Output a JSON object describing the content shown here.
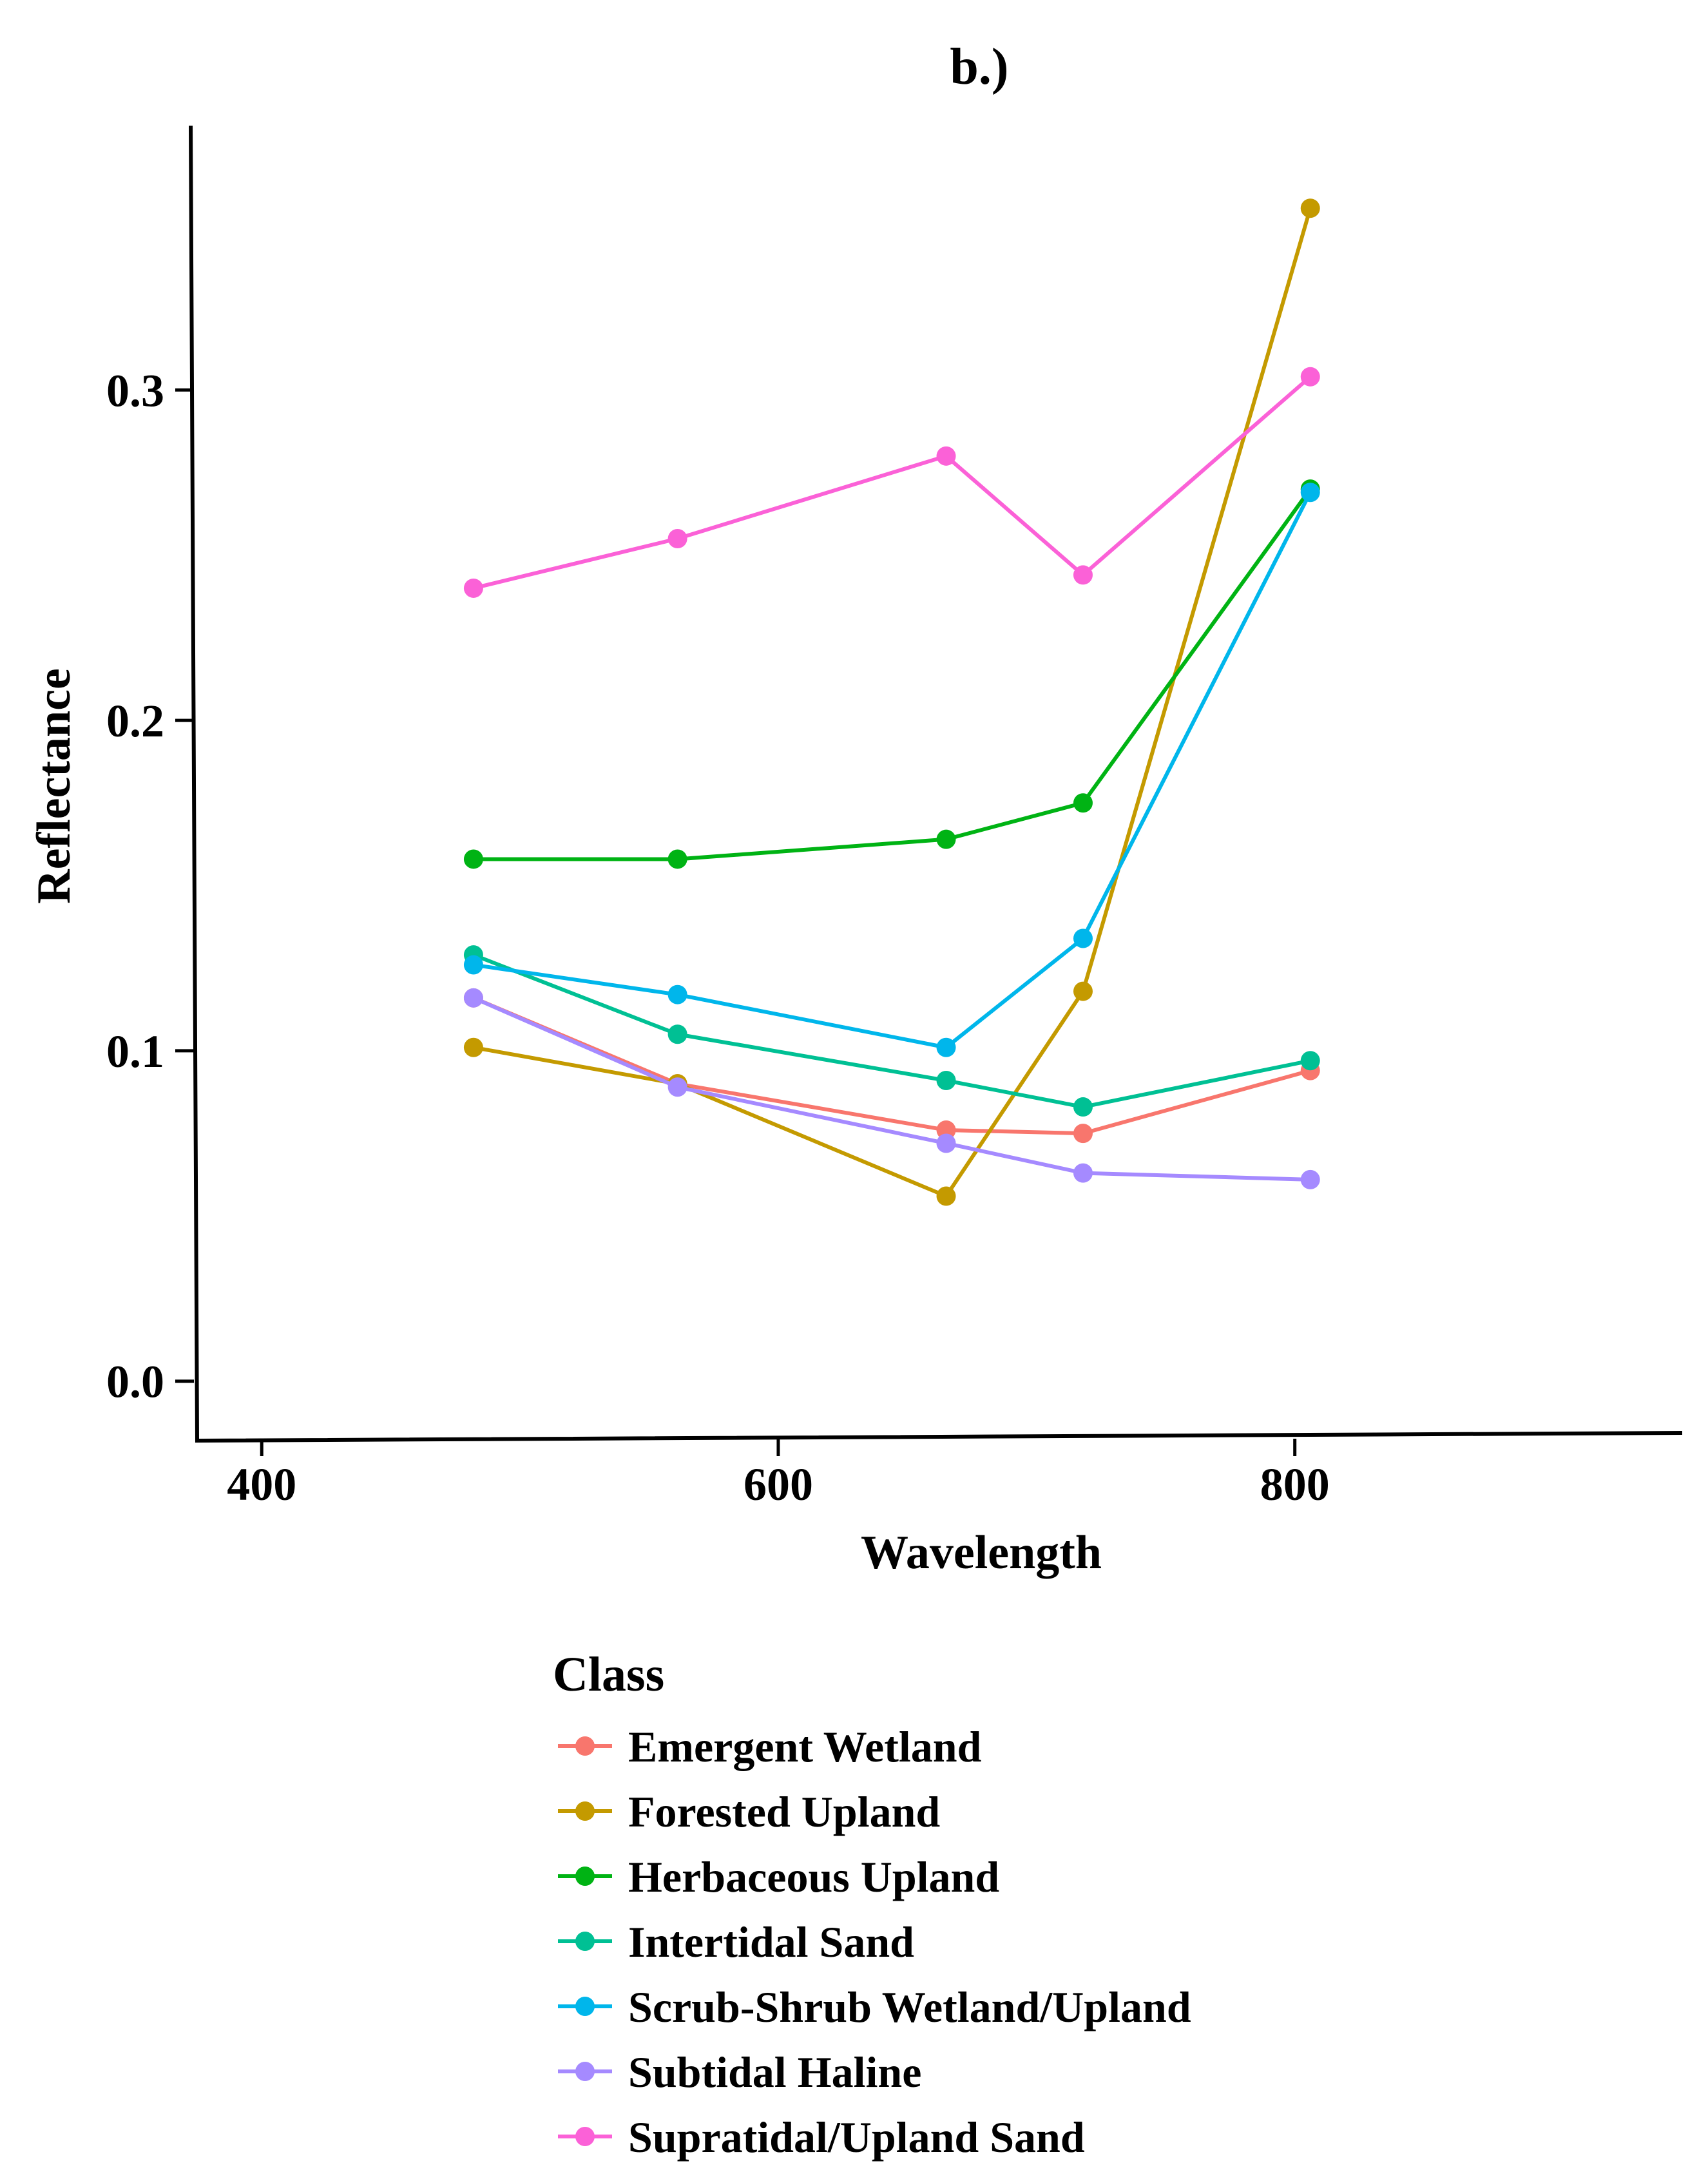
{
  "chart_data": {
    "type": "line",
    "title": "b.)",
    "xlabel": "Wavelength",
    "ylabel": "Reflectance",
    "xlim": [
      375,
      950
    ],
    "ylim": [
      -0.018,
      0.38
    ],
    "xticks": [
      400,
      600,
      800
    ],
    "xtick_labels": [
      "400",
      "600",
      "800"
    ],
    "yticks": [
      0.0,
      0.1,
      0.2,
      0.3
    ],
    "ytick_labels": [
      "0.0",
      "0.1",
      "0.2",
      "0.3"
    ],
    "grid": false,
    "legend": {
      "title": "Class",
      "position": "bottom"
    },
    "x": [
      482,
      561,
      665,
      718,
      806
    ],
    "series": [
      {
        "name": "Emergent Wetland",
        "color": "#F8766D",
        "values": [
          0.116,
          0.09,
          0.076,
          0.075,
          0.094
        ]
      },
      {
        "name": "Forested Upland",
        "color": "#C49A00",
        "values": [
          0.101,
          0.09,
          0.056,
          0.118,
          0.355
        ]
      },
      {
        "name": "Herbaceous Upland",
        "color": "#00B314",
        "values": [
          0.158,
          0.158,
          0.164,
          0.175,
          0.27
        ]
      },
      {
        "name": "Intertidal Sand",
        "color": "#00C094",
        "values": [
          0.129,
          0.105,
          0.091,
          0.083,
          0.097
        ]
      },
      {
        "name": "Scrub-Shrub Wetland/Upland",
        "color": "#00B6EB",
        "values": [
          0.126,
          0.117,
          0.101,
          0.134,
          0.269
        ]
      },
      {
        "name": "Subtidal Haline",
        "color": "#A58AFF",
        "values": [
          0.116,
          0.089,
          0.072,
          0.063,
          0.061
        ]
      },
      {
        "name": "Supratidal/Upland Sand",
        "color": "#FB61D7",
        "values": [
          0.24,
          0.255,
          0.28,
          0.244,
          0.304
        ]
      }
    ]
  }
}
